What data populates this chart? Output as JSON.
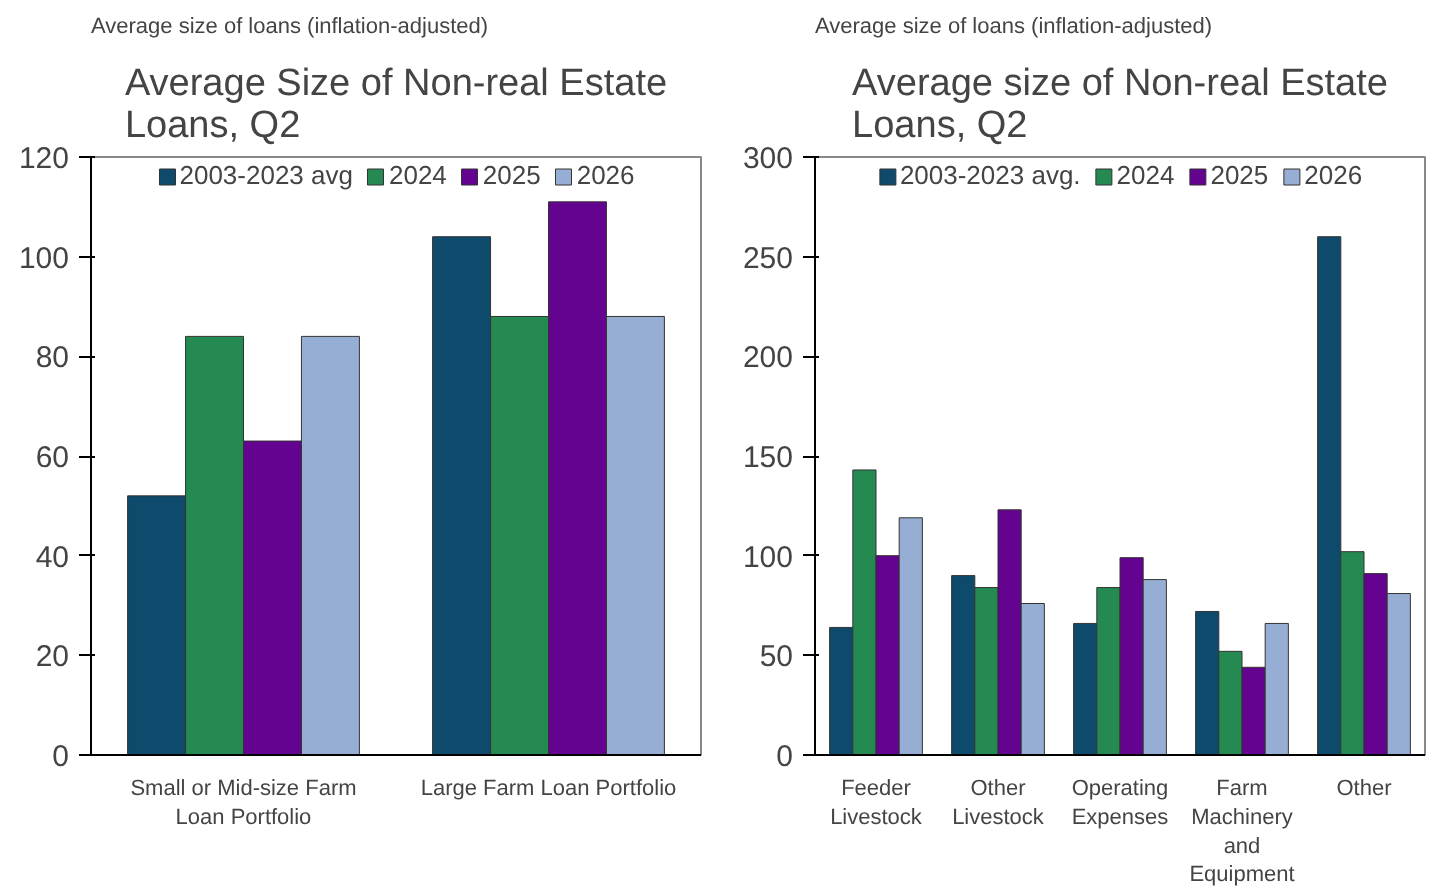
{
  "chart_data": [
    {
      "type": "bar",
      "title": "Average Size of Non-real Estate\nLoans, Q2",
      "ylabel": "Average size of loans (inflation-adjusted)",
      "categories": [
        "Small or Mid-size Farm\nLoan Portfolio",
        "Large Farm Loan Portfolio"
      ],
      "series": [
        {
          "name": "2003-2023 avg",
          "color": "#0d4a6b",
          "values": [
            52,
            104
          ]
        },
        {
          "name": "2024",
          "color": "#258a52",
          "values": [
            84,
            88
          ]
        },
        {
          "name": "2025",
          "color": "#650391",
          "values": [
            63,
            111
          ]
        },
        {
          "name": "2026",
          "color": "#97aed4",
          "values": [
            84,
            88
          ]
        }
      ],
      "ylim": [
        0,
        120
      ],
      "yticks": [
        0,
        20,
        40,
        60,
        80,
        100,
        120
      ],
      "grid": false,
      "legend": "top"
    },
    {
      "type": "bar",
      "title": "Average size of Non-real Estate\nLoans, Q2",
      "ylabel": "Average size of loans (inflation-adjusted)",
      "categories": [
        "Feeder\nLivestock",
        "Other\nLivestock",
        "Operating\nExpenses",
        "Farm\nMachinery\nand\nEquipment",
        "Other"
      ],
      "series": [
        {
          "name": "2003-2023 avg.",
          "color": "#0d4a6b",
          "values": [
            64,
            90,
            66,
            72,
            260
          ]
        },
        {
          "name": "2024",
          "color": "#258a52",
          "values": [
            143,
            84,
            84,
            52,
            102
          ]
        },
        {
          "name": "2025",
          "color": "#650391",
          "values": [
            100,
            123,
            99,
            44,
            91
          ]
        },
        {
          "name": "2026",
          "color": "#97aed4",
          "values": [
            119,
            76,
            88,
            66,
            81
          ]
        }
      ],
      "ylim": [
        0,
        300
      ],
      "yticks": [
        0,
        50,
        100,
        150,
        200,
        250,
        300
      ],
      "grid": false,
      "legend": "top"
    }
  ]
}
